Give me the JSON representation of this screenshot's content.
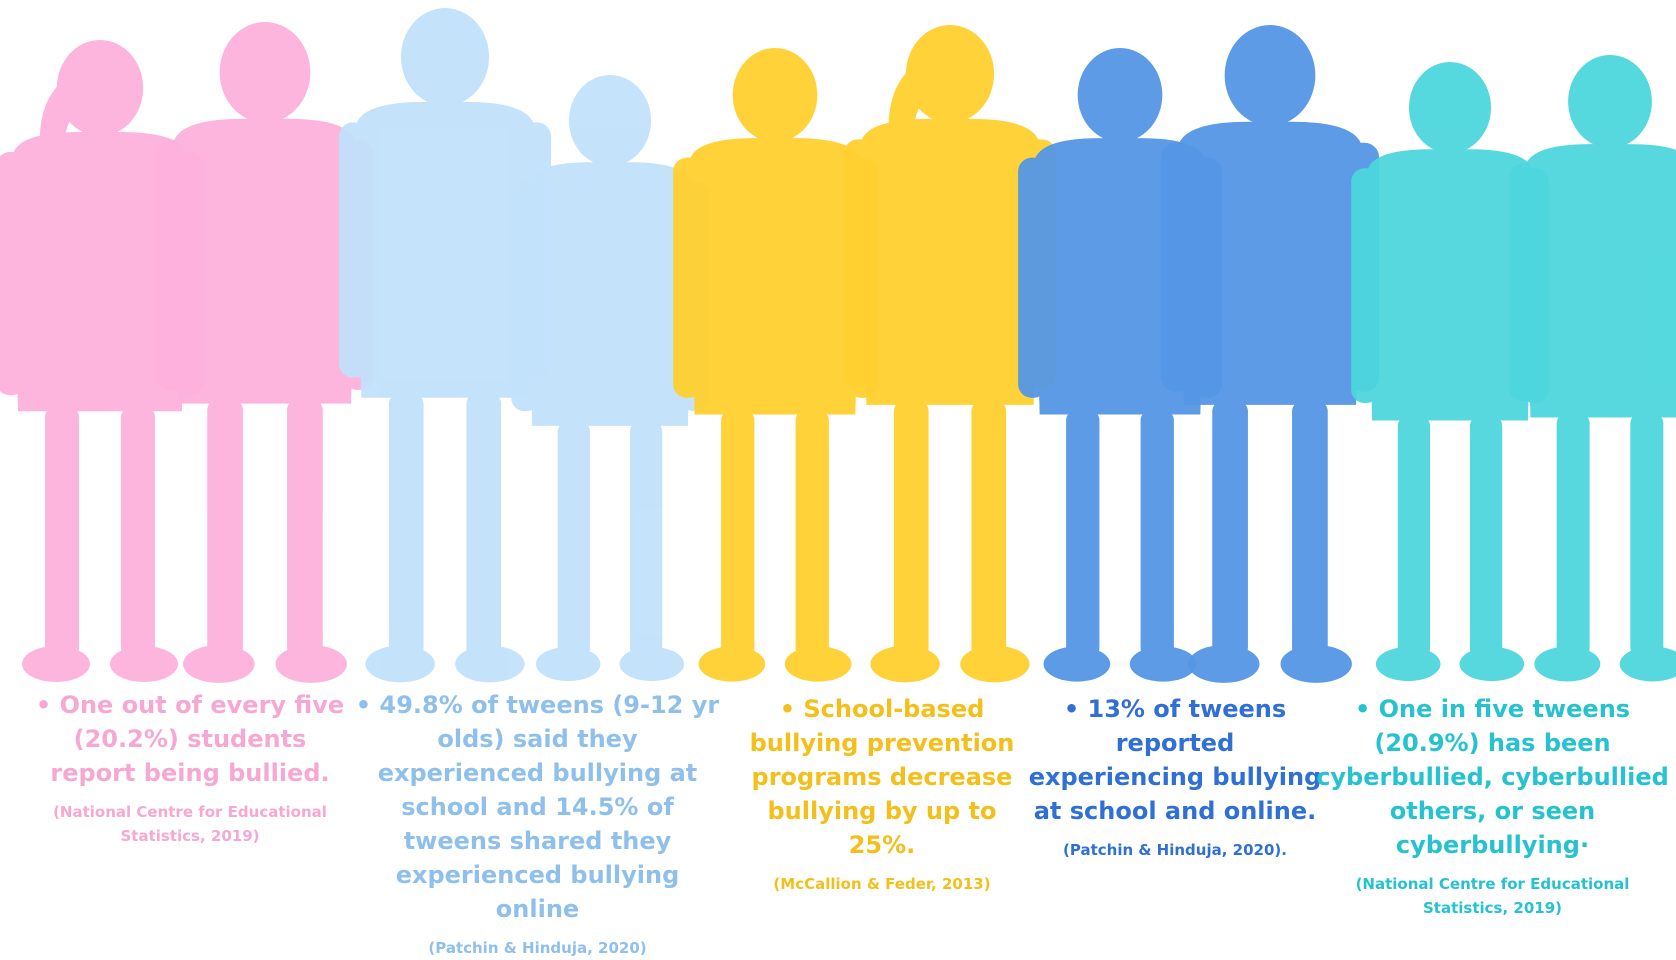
{
  "colors": {
    "pink": "#fdb1dc",
    "light_blue": "#c2e1fb",
    "yellow": "#ffd02f",
    "blue": "#5596e6",
    "teal": "#4dd6dd"
  },
  "figures": [
    {
      "name": "girl-silhouette-pink-1",
      "color": "#fdb1dc"
    },
    {
      "name": "girl-silhouette-pink-2",
      "color": "#fdb1dc"
    },
    {
      "name": "boy-silhouette-lightblue-1",
      "color": "#c2e1fb"
    },
    {
      "name": "boy-silhouette-lightblue-2",
      "color": "#c2e1fb"
    },
    {
      "name": "boy-silhouette-yellow",
      "color": "#ffd02f"
    },
    {
      "name": "girl-silhouette-yellow",
      "color": "#ffd02f"
    },
    {
      "name": "boy-silhouette-blue",
      "color": "#5596e6"
    },
    {
      "name": "girl-silhouette-blue",
      "color": "#5596e6"
    },
    {
      "name": "boy-silhouette-teal-1",
      "color": "#4dd6dd"
    },
    {
      "name": "boy-silhouette-teal-2",
      "color": "#4dd6dd"
    }
  ],
  "stats": [
    {
      "text": "• One out of every five (20.2%) students report being bullied.",
      "source": "(National Centre for Educational Statistics, 2019)"
    },
    {
      "text": "• 49.8% of tweens (9-12 yr olds) said they experienced bullying at school and 14.5% of tweens shared they experienced bullying online",
      "source": "(Patchin & Hinduja, 2020)"
    },
    {
      "text": "• School-based bullying prevention programs decrease bullying by up to 25%.",
      "source": "(McCallion & Feder, 2013)"
    },
    {
      "text": "• 13% of tweens reported experiencing bullying at school and online.",
      "source": "(Patchin & Hinduja, 2020)."
    },
    {
      "text": "• One in five tweens (20.9%) has been cyberbullied, cyberbullied others, or seen cyberbullying·",
      "source": "(National Centre for Educational Statistics, 2019)"
    }
  ]
}
